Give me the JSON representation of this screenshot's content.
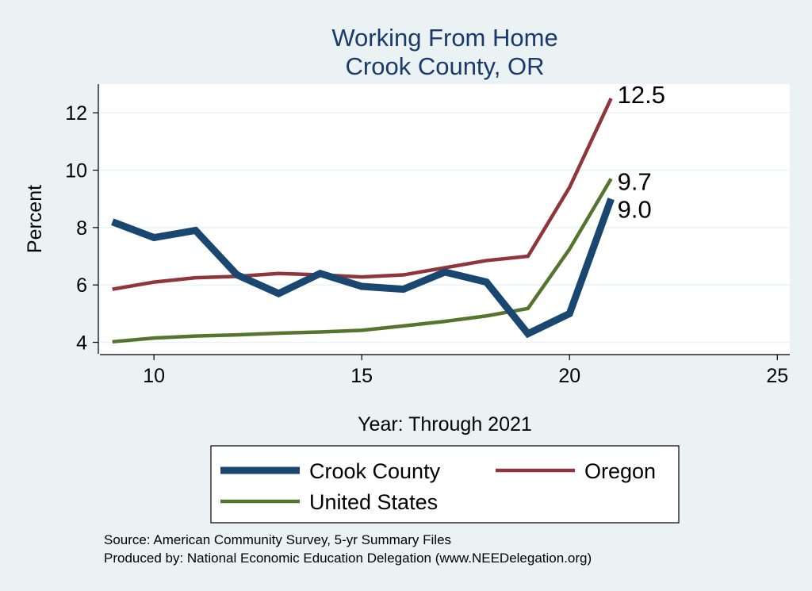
{
  "chart_data": {
    "type": "line",
    "title_lines": [
      "Working From Home",
      "Crook County, OR"
    ],
    "xlabel": "Year: Through 2021",
    "ylabel": "Percent",
    "xlim": [
      8.7,
      25.3
    ],
    "ylim": [
      3.6,
      13.0
    ],
    "xticks": [
      10,
      15,
      20,
      25
    ],
    "yticks": [
      4,
      6,
      8,
      10,
      12
    ],
    "grid": true,
    "legend_position": "bottom",
    "series": [
      {
        "name": "Crook County",
        "color": "#1a476f",
        "width": "thick",
        "x": [
          9,
          10,
          11,
          12,
          13,
          14,
          15,
          16,
          17,
          18,
          19,
          20,
          21
        ],
        "y": [
          8.2,
          7.65,
          7.9,
          6.35,
          5.7,
          6.4,
          5.95,
          5.85,
          6.45,
          6.1,
          4.3,
          5.0,
          9.0
        ],
        "end_label": "9.0"
      },
      {
        "name": "Oregon",
        "color": "#90353b",
        "width": "medium",
        "x": [
          9,
          10,
          11,
          12,
          13,
          14,
          15,
          16,
          17,
          18,
          19,
          20,
          21
        ],
        "y": [
          5.85,
          6.1,
          6.25,
          6.3,
          6.4,
          6.35,
          6.28,
          6.35,
          6.6,
          6.85,
          7.0,
          9.4,
          12.5
        ],
        "end_label": "12.5"
      },
      {
        "name": "United States",
        "color": "#55752f",
        "width": "medium",
        "x": [
          9,
          10,
          11,
          12,
          13,
          14,
          15,
          16,
          17,
          18,
          19,
          20,
          21
        ],
        "y": [
          4.02,
          4.15,
          4.22,
          4.26,
          4.32,
          4.36,
          4.42,
          4.57,
          4.73,
          4.92,
          5.18,
          7.25,
          9.7
        ],
        "end_label": "9.7"
      }
    ]
  },
  "source_note": "Source: American Community Survey, 5-yr Summary Files",
  "producer_note": "Produced by: National Economic Education Delegation (www.NEEDelegation.org)"
}
